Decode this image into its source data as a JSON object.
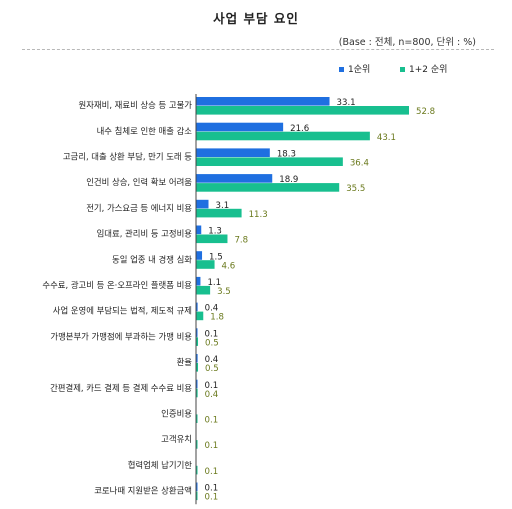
{
  "title": "사업 부담 요인",
  "subtitle": "(Base : 전체, n=800, 단위 : %)",
  "colors": {
    "series1": "#1f6fe0",
    "series2": "#18bf8f",
    "label1": "#222222",
    "label2": "#6b7a1e",
    "axis": "#444444"
  },
  "chart_data": {
    "type": "bar",
    "orientation": "horizontal",
    "title": "사업 부담 요인",
    "subtitle": "(Base : 전체, n=800, 단위 : %)",
    "categories": [
      "원자재비, 재료비 상승 등 고물가",
      "내수 침체로 인한 매출 감소",
      "고금리, 대출 상환 부담, 만기 도래 등",
      "인건비 상승, 인력 확보 어려움",
      "전기, 가스요금 등 에너지 비용",
      "임대료, 관리비 등 고정비용",
      "동일 업종 내 경쟁 심화",
      "수수료, 광고비 등 온‧오프라인 플랫폼 비용",
      "사업 운영에 부담되는 법적, 제도적 규제",
      "가맹본부가 가맹점에 부과하는 가맹 비용",
      "환율",
      "간편결제, 카드 결제 등 결제 수수료 비용",
      "인증비용",
      "고객유치",
      "협력업체 납기기한",
      "코로나때 지원받은 상환금액"
    ],
    "series": [
      {
        "name": "1순위",
        "values": [
          33.1,
          21.6,
          18.3,
          18.9,
          3.1,
          1.3,
          1.5,
          1.1,
          0.4,
          0.1,
          0.4,
          0.1,
          null,
          null,
          null,
          0.1
        ]
      },
      {
        "name": "1+2 순위",
        "values": [
          52.8,
          43.1,
          36.4,
          35.5,
          11.3,
          7.8,
          4.6,
          3.5,
          1.8,
          0.5,
          0.5,
          0.4,
          0.1,
          0.1,
          0.1,
          0.1
        ]
      }
    ],
    "value_labels": {
      "1순위": [
        "33.1",
        "21.6",
        "18.3",
        "18.9",
        "3.1",
        "1.3",
        "1.5",
        "1.1",
        "0.4",
        "0.1",
        "0.4",
        "0.1",
        "",
        "",
        "",
        "0.1"
      ],
      "1+2 순위": [
        "52.8",
        "43.1",
        "36.4",
        "35.5",
        "11.3",
        "7.8",
        "4.6",
        "3.5",
        "1.8",
        "0.5",
        "0.5",
        "0.4",
        "0.1",
        "0.1",
        "0.1",
        "0.1"
      ]
    },
    "xlim": [
      0,
      60
    ],
    "legend": "top-right",
    "grid": false
  }
}
